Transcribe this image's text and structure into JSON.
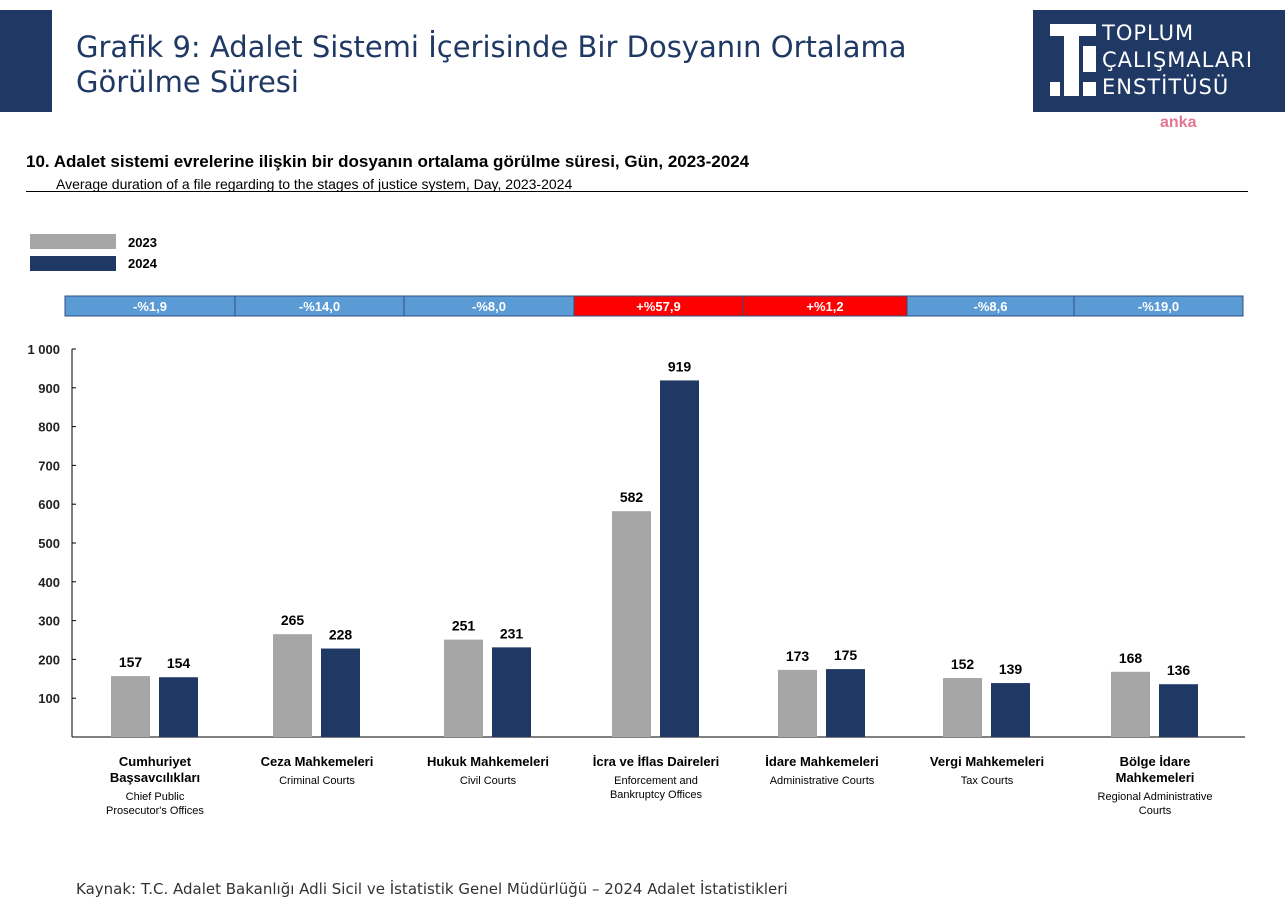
{
  "header": {
    "title": "Grafik 9: Adalet Sistemi İçerisinde Bir Dosyanın Ortalama Görülme Süresi",
    "logo_lines": [
      "TOPLUM",
      "ÇALIŞMALARI",
      "ENSTİTÜSÜ"
    ],
    "watermark": "anka"
  },
  "chart_data": {
    "type": "bar",
    "title": "10. Adalet sistemi evrelerine ilişkin bir dosyanın ortalama görülme süresi, Gün, 2023-2024",
    "subtitle": "Average duration of a file regarding to the stages of justice system, Day, 2023-2024",
    "categories": [
      {
        "tr": [
          "Cumhuriyet",
          "Başsavcılıkları"
        ],
        "en": [
          "Chief Public",
          "Prosecutor's Offices"
        ]
      },
      {
        "tr": [
          "Ceza Mahkemeleri"
        ],
        "en": [
          "Criminal Courts"
        ]
      },
      {
        "tr": [
          "Hukuk Mahkemeleri"
        ],
        "en": [
          "Civil Courts"
        ]
      },
      {
        "tr": [
          "İcra ve İflas Daireleri"
        ],
        "en": [
          "Enforcement and",
          "Bankruptcy Offices"
        ]
      },
      {
        "tr": [
          "İdare Mahkemeleri"
        ],
        "en": [
          "Administrative Courts"
        ]
      },
      {
        "tr": [
          "Vergi Mahkemeleri"
        ],
        "en": [
          "Tax Courts"
        ]
      },
      {
        "tr": [
          "Bölge İdare",
          "Mahkemeleri"
        ],
        "en": [
          "Regional Administrative",
          "Courts"
        ]
      }
    ],
    "series": [
      {
        "name": "2023",
        "color": "#a6a6a6",
        "values": [
          157,
          265,
          251,
          582,
          173,
          152,
          168
        ]
      },
      {
        "name": "2024",
        "color": "#1f3864",
        "values": [
          154,
          228,
          231,
          919,
          175,
          139,
          136
        ]
      }
    ],
    "changes": [
      "-%1,9",
      "-%14,0",
      "-%8,0",
      "+%57,9",
      "+%1,2",
      "-%8,6",
      "-%19,0"
    ],
    "change_colors": {
      "negative": "#5b9bd5",
      "positive": "#ff0000"
    },
    "yticks": [
      "100",
      "200",
      "300",
      "400",
      "500",
      "600",
      "700",
      "800",
      "900",
      "1 000"
    ],
    "ylim": [
      0,
      1000
    ],
    "legend": "top-left",
    "grid": false
  },
  "source": "Kaynak: T.C. Adalet Bakanlığı Adli Sicil ve İstatistik Genel Müdürlüğü – 2024 Adalet İstatistikleri"
}
